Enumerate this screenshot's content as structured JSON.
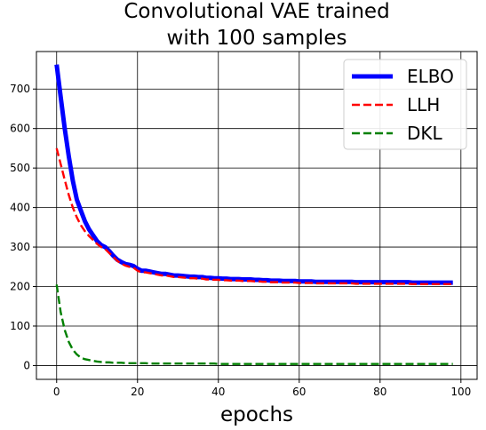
{
  "chart_data": {
    "type": "line",
    "title_lines": [
      "Convolutional VAE trained",
      "with 100 samples"
    ],
    "xlabel": "epochs",
    "ylabel": "",
    "xlim": [
      -5,
      104
    ],
    "ylim": [
      -35,
      795
    ],
    "xticks": [
      0,
      20,
      40,
      60,
      80,
      100
    ],
    "yticks": [
      0,
      100,
      200,
      300,
      400,
      500,
      600,
      700
    ],
    "grid": true,
    "legend_position": "top-right",
    "legend": [
      "ELBO",
      "LLH",
      "DKL"
    ],
    "x": [
      0,
      1,
      2,
      3,
      4,
      5,
      6,
      7,
      8,
      9,
      10,
      11,
      12,
      13,
      14,
      15,
      16,
      17,
      18,
      19,
      20,
      21,
      22,
      23,
      24,
      25,
      26,
      27,
      28,
      29,
      30,
      31,
      32,
      33,
      34,
      35,
      36,
      37,
      38,
      39,
      40,
      41,
      42,
      43,
      44,
      45,
      46,
      47,
      48,
      49,
      50,
      51,
      52,
      53,
      54,
      55,
      56,
      57,
      58,
      59,
      60,
      61,
      62,
      63,
      64,
      65,
      66,
      67,
      68,
      69,
      70,
      71,
      72,
      73,
      74,
      75,
      76,
      77,
      78,
      79,
      80,
      81,
      82,
      83,
      84,
      85,
      86,
      87,
      88,
      89,
      90,
      91,
      92,
      93,
      94,
      95,
      96,
      97,
      98
    ],
    "series": [
      {
        "name": "ELBO",
        "color": "#0000ff",
        "style": "solid",
        "values": [
          762,
          680,
          600,
          530,
          468,
          420,
          392,
          365,
          345,
          330,
          315,
          305,
          300,
          290,
          278,
          268,
          262,
          257,
          255,
          252,
          245,
          240,
          240,
          238,
          236,
          234,
          232,
          232,
          230,
          228,
          228,
          227,
          226,
          225,
          225,
          224,
          224,
          222,
          222,
          221,
          221,
          220,
          220,
          219,
          219,
          219,
          218,
          218,
          218,
          217,
          217,
          216,
          216,
          215,
          215,
          215,
          214,
          214,
          214,
          214,
          213,
          213,
          213,
          213,
          212,
          212,
          212,
          212,
          212,
          212,
          212,
          212,
          212,
          212,
          211,
          211,
          211,
          211,
          211,
          211,
          211,
          211,
          211,
          211,
          211,
          211,
          211,
          211,
          210,
          210,
          210,
          210,
          210,
          210,
          210,
          210,
          210,
          210,
          210
        ]
      },
      {
        "name": "LLH",
        "color": "#ff0000",
        "style": "dashed",
        "values": [
          550,
          510,
          470,
          432,
          400,
          375,
          355,
          340,
          328,
          318,
          308,
          300,
          295,
          285,
          275,
          265,
          258,
          253,
          250,
          248,
          240,
          236,
          236,
          234,
          232,
          230,
          228,
          228,
          226,
          224,
          224,
          223,
          222,
          221,
          221,
          220,
          220,
          218,
          218,
          217,
          217,
          216,
          216,
          215,
          215,
          215,
          214,
          214,
          214,
          213,
          213,
          212,
          212,
          211,
          211,
          211,
          210,
          210,
          210,
          210,
          209,
          209,
          209,
          209,
          208,
          208,
          208,
          208,
          208,
          208,
          208,
          208,
          208,
          208,
          207,
          207,
          207,
          207,
          207,
          207,
          207,
          207,
          207,
          207,
          207,
          207,
          207,
          207,
          206,
          206,
          206,
          206,
          206,
          206,
          206,
          206,
          206,
          206,
          206
        ]
      },
      {
        "name": "DKL",
        "color": "#008000",
        "style": "dashed",
        "values": [
          205,
          135,
          90,
          60,
          40,
          28,
          20,
          16,
          14,
          12,
          10,
          9,
          8,
          8,
          7,
          7,
          7,
          6,
          6,
          6,
          6,
          6,
          6,
          5,
          5,
          5,
          5,
          5,
          5,
          5,
          5,
          5,
          5,
          5,
          5,
          5,
          5,
          5,
          5,
          5,
          4,
          4,
          4,
          4,
          4,
          4,
          4,
          4,
          4,
          4,
          4,
          4,
          4,
          4,
          4,
          4,
          4,
          4,
          4,
          4,
          4,
          4,
          4,
          4,
          4,
          4,
          4,
          4,
          4,
          4,
          4,
          4,
          4,
          4,
          4,
          4,
          4,
          4,
          4,
          4,
          4,
          4,
          4,
          4,
          4,
          4,
          4,
          4,
          4,
          4,
          4,
          4,
          4,
          4,
          4,
          4,
          4,
          4,
          4
        ]
      }
    ]
  }
}
